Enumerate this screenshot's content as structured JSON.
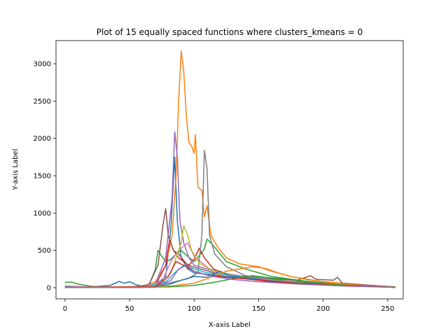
{
  "chart_data": {
    "type": "line",
    "title": "Plot of 15 equally spaced functions where clusters_kmeans = 0",
    "xlabel": "X-axis Label",
    "ylabel": "Y-axis Label",
    "xlim": [
      -7,
      262
    ],
    "ylim": [
      -150,
      3310
    ],
    "xticks": [
      0,
      50,
      100,
      150,
      200,
      250
    ],
    "yticks": [
      0,
      500,
      1000,
      1500,
      2000,
      2500,
      3000
    ],
    "grid": false,
    "legend": "none",
    "series": [
      {
        "color": "#1f77b4",
        "points": [
          [
            0,
            20
          ],
          [
            20,
            10
          ],
          [
            35,
            30
          ],
          [
            42,
            85
          ],
          [
            46,
            60
          ],
          [
            50,
            80
          ],
          [
            55,
            40
          ],
          [
            60,
            20
          ],
          [
            70,
            40
          ],
          [
            78,
            150
          ],
          [
            82,
            800
          ],
          [
            85,
            1750
          ],
          [
            87,
            900
          ],
          [
            90,
            400
          ],
          [
            95,
            250
          ],
          [
            100,
            200
          ],
          [
            110,
            180
          ],
          [
            120,
            160
          ],
          [
            130,
            140
          ],
          [
            150,
            120
          ],
          [
            170,
            90
          ],
          [
            200,
            60
          ],
          [
            230,
            30
          ],
          [
            256,
            5
          ]
        ]
      },
      {
        "color": "#ff7f0e",
        "points": [
          [
            0,
            10
          ],
          [
            40,
            10
          ],
          [
            60,
            20
          ],
          [
            70,
            80
          ],
          [
            78,
            300
          ],
          [
            83,
            700
          ],
          [
            86,
            1500
          ],
          [
            88,
            2500
          ],
          [
            90,
            3170
          ],
          [
            92,
            2900
          ],
          [
            94,
            2300
          ],
          [
            96,
            1950
          ],
          [
            98,
            1900
          ],
          [
            100,
            1800
          ],
          [
            101,
            2050
          ],
          [
            103,
            1350
          ],
          [
            106,
            1300
          ],
          [
            108,
            950
          ],
          [
            110,
            1100
          ],
          [
            113,
            700
          ],
          [
            118,
            550
          ],
          [
            125,
            400
          ],
          [
            135,
            320
          ],
          [
            150,
            280
          ],
          [
            160,
            220
          ],
          [
            175,
            150
          ],
          [
            200,
            80
          ],
          [
            230,
            40
          ],
          [
            256,
            10
          ]
        ]
      },
      {
        "color": "#2ca02c",
        "points": [
          [
            0,
            70
          ],
          [
            5,
            75
          ],
          [
            10,
            50
          ],
          [
            20,
            20
          ],
          [
            30,
            10
          ],
          [
            40,
            5
          ],
          [
            60,
            5
          ],
          [
            65,
            30
          ],
          [
            70,
            250
          ],
          [
            72,
            500
          ],
          [
            75,
            420
          ],
          [
            78,
            350
          ],
          [
            82,
            380
          ],
          [
            86,
            450
          ],
          [
            90,
            500
          ],
          [
            95,
            420
          ],
          [
            100,
            350
          ],
          [
            105,
            450
          ],
          [
            108,
            520
          ],
          [
            110,
            650
          ],
          [
            113,
            600
          ],
          [
            118,
            500
          ],
          [
            125,
            350
          ],
          [
            140,
            250
          ],
          [
            160,
            150
          ],
          [
            190,
            80
          ],
          [
            220,
            40
          ],
          [
            256,
            10
          ]
        ]
      },
      {
        "color": "#d62728",
        "points": [
          [
            0,
            5
          ],
          [
            50,
            5
          ],
          [
            70,
            30
          ],
          [
            78,
            300
          ],
          [
            81,
            650
          ],
          [
            84,
            500
          ],
          [
            88,
            400
          ],
          [
            92,
            350
          ],
          [
            96,
            300
          ],
          [
            100,
            380
          ],
          [
            104,
            530
          ],
          [
            108,
            400
          ],
          [
            115,
            250
          ],
          [
            125,
            180
          ],
          [
            140,
            120
          ],
          [
            160,
            80
          ],
          [
            200,
            40
          ],
          [
            256,
            5
          ]
        ]
      },
      {
        "color": "#9467bd",
        "points": [
          [
            0,
            5
          ],
          [
            50,
            5
          ],
          [
            70,
            50
          ],
          [
            78,
            400
          ],
          [
            83,
            1200
          ],
          [
            85,
            2090
          ],
          [
            87,
            1750
          ],
          [
            89,
            900
          ],
          [
            92,
            600
          ],
          [
            96,
            400
          ],
          [
            100,
            300
          ],
          [
            110,
            250
          ],
          [
            120,
            200
          ],
          [
            140,
            150
          ],
          [
            160,
            110
          ],
          [
            200,
            50
          ],
          [
            256,
            5
          ]
        ]
      },
      {
        "color": "#8c564b",
        "points": [
          [
            0,
            5
          ],
          [
            50,
            5
          ],
          [
            65,
            40
          ],
          [
            72,
            300
          ],
          [
            76,
            850
          ],
          [
            78,
            1060
          ],
          [
            80,
            700
          ],
          [
            84,
            500
          ],
          [
            88,
            450
          ],
          [
            95,
            300
          ],
          [
            105,
            250
          ],
          [
            120,
            180
          ],
          [
            150,
            130
          ],
          [
            180,
            100
          ],
          [
            190,
            160
          ],
          [
            195,
            110
          ],
          [
            208,
            100
          ],
          [
            211,
            140
          ],
          [
            215,
            60
          ],
          [
            256,
            5
          ]
        ]
      },
      {
        "color": "#e377c2",
        "points": [
          [
            0,
            10
          ],
          [
            60,
            10
          ],
          [
            75,
            80
          ],
          [
            82,
            350
          ],
          [
            88,
            500
          ],
          [
            95,
            600
          ],
          [
            100,
            420
          ],
          [
            105,
            350
          ],
          [
            112,
            250
          ],
          [
            125,
            180
          ],
          [
            150,
            120
          ],
          [
            180,
            70
          ],
          [
            256,
            5
          ]
        ]
      },
      {
        "color": "#7f7f7f",
        "points": [
          [
            0,
            5
          ],
          [
            60,
            5
          ],
          [
            80,
            60
          ],
          [
            95,
            120
          ],
          [
            103,
            200
          ],
          [
            106,
            700
          ],
          [
            108,
            1840
          ],
          [
            110,
            1600
          ],
          [
            112,
            700
          ],
          [
            116,
            450
          ],
          [
            125,
            280
          ],
          [
            140,
            160
          ],
          [
            170,
            90
          ],
          [
            200,
            50
          ],
          [
            256,
            5
          ]
        ]
      },
      {
        "color": "#bcbd22",
        "points": [
          [
            0,
            5
          ],
          [
            60,
            5
          ],
          [
            75,
            60
          ],
          [
            82,
            200
          ],
          [
            87,
            450
          ],
          [
            90,
            600
          ],
          [
            92,
            830
          ],
          [
            95,
            700
          ],
          [
            98,
            500
          ],
          [
            104,
            330
          ],
          [
            112,
            250
          ],
          [
            125,
            180
          ],
          [
            150,
            110
          ],
          [
            190,
            60
          ],
          [
            256,
            5
          ]
        ]
      },
      {
        "color": "#17becf",
        "points": [
          [
            0,
            5
          ],
          [
            60,
            5
          ],
          [
            78,
            80
          ],
          [
            85,
            200
          ],
          [
            92,
            300
          ],
          [
            100,
            250
          ],
          [
            110,
            200
          ],
          [
            120,
            180
          ],
          [
            135,
            150
          ],
          [
            155,
            100
          ],
          [
            190,
            50
          ],
          [
            256,
            5
          ]
        ]
      },
      {
        "color": "#1f77b4",
        "points": [
          [
            0,
            5
          ],
          [
            60,
            5
          ],
          [
            80,
            40
          ],
          [
            90,
            100
          ],
          [
            100,
            150
          ],
          [
            110,
            140
          ],
          [
            120,
            220
          ],
          [
            128,
            160
          ],
          [
            140,
            130
          ],
          [
            160,
            90
          ],
          [
            200,
            40
          ],
          [
            256,
            5
          ]
        ]
      },
      {
        "color": "#ff7f0e",
        "points": [
          [
            0,
            5
          ],
          [
            80,
            20
          ],
          [
            100,
            60
          ],
          [
            115,
            150
          ],
          [
            125,
            220
          ],
          [
            135,
            250
          ],
          [
            145,
            280
          ],
          [
            155,
            260
          ],
          [
            165,
            200
          ],
          [
            175,
            150
          ],
          [
            190,
            100
          ],
          [
            210,
            60
          ],
          [
            230,
            30
          ],
          [
            256,
            5
          ]
        ]
      },
      {
        "color": "#2ca02c",
        "points": [
          [
            0,
            5
          ],
          [
            80,
            10
          ],
          [
            100,
            30
          ],
          [
            115,
            70
          ],
          [
            130,
            120
          ],
          [
            145,
            160
          ],
          [
            160,
            130
          ],
          [
            175,
            110
          ],
          [
            190,
            60
          ],
          [
            220,
            30
          ],
          [
            256,
            5
          ]
        ]
      },
      {
        "color": "#d62728",
        "points": [
          [
            0,
            5
          ],
          [
            70,
            10
          ],
          [
            80,
            150
          ],
          [
            86,
            350
          ],
          [
            92,
            300
          ],
          [
            100,
            220
          ],
          [
            110,
            170
          ],
          [
            125,
            140
          ],
          [
            145,
            110
          ],
          [
            170,
            70
          ],
          [
            210,
            30
          ],
          [
            256,
            5
          ]
        ]
      },
      {
        "color": "#9467bd",
        "points": [
          [
            0,
            5
          ],
          [
            70,
            5
          ],
          [
            82,
            100
          ],
          [
            88,
            250
          ],
          [
            94,
            300
          ],
          [
            100,
            220
          ],
          [
            115,
            150
          ],
          [
            130,
            110
          ],
          [
            150,
            80
          ],
          [
            180,
            50
          ],
          [
            220,
            20
          ],
          [
            256,
            5
          ]
        ]
      }
    ]
  }
}
